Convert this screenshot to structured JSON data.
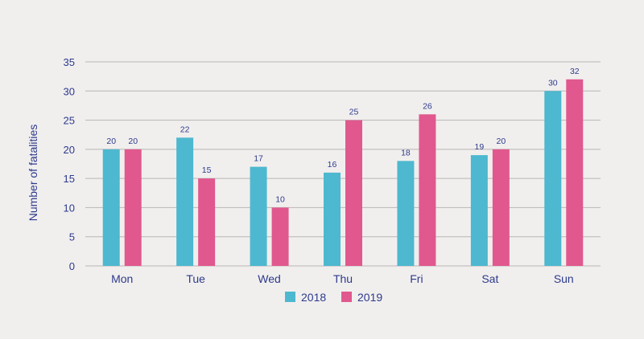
{
  "chart_data": {
    "type": "bar",
    "title": "",
    "xlabel": "",
    "ylabel": "Number of fatalities",
    "ylim": [
      0,
      35
    ],
    "yticks": [
      0,
      5,
      10,
      15,
      20,
      25,
      30,
      35
    ],
    "grid": true,
    "legend_position": "bottom-center",
    "categories": [
      "Mon",
      "Tue",
      "Wed",
      "Thu",
      "Fri",
      "Sat",
      "Sun"
    ],
    "series": [
      {
        "name": "2018",
        "color": "#4db8cf",
        "values": [
          20,
          22,
          17,
          16,
          18,
          19,
          30
        ]
      },
      {
        "name": "2019",
        "color": "#e0588e",
        "values": [
          20,
          15,
          10,
          25,
          26,
          20,
          32
        ]
      }
    ]
  }
}
